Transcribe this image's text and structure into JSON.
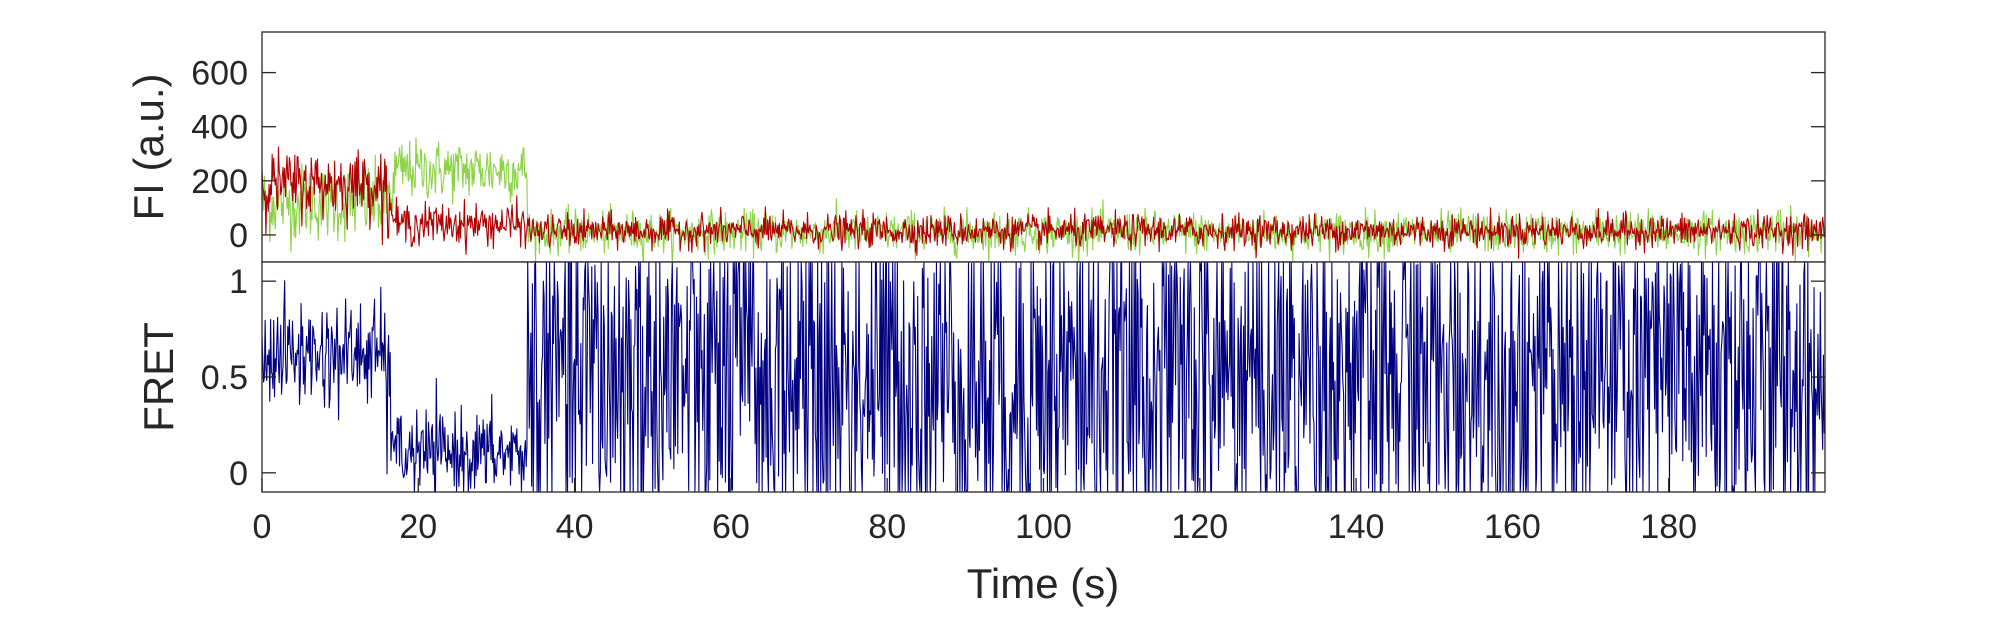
{
  "chart_data": [
    {
      "type": "line",
      "ylabel": "FI (a.u.)",
      "xlim": [
        0,
        200
      ],
      "ylim": [
        -100,
        750
      ],
      "yticks": [
        0,
        200,
        400,
        600
      ],
      "grid": false,
      "legend": "none",
      "series": [
        {
          "color": "#8cd348",
          "segments": [
            {
              "x": [
                0,
                16
              ],
              "mean": 120,
              "noise": 70
            },
            {
              "x": [
                16,
                17
              ],
              "mean": 160,
              "noise": 60
            },
            {
              "x": [
                17,
                34
              ],
              "mean": 240,
              "noise": 55
            },
            {
              "x": [
                34,
                200
              ],
              "mean": 10,
              "noise": 38
            }
          ]
        },
        {
          "color": "#b00000",
          "segments": [
            {
              "x": [
                0,
                16
              ],
              "mean": 190,
              "noise": 60
            },
            {
              "x": [
                16,
                17
              ],
              "mean": 90,
              "noise": 50
            },
            {
              "x": [
                17,
                34
              ],
              "mean": 40,
              "noise": 38
            },
            {
              "x": [
                34,
                200
              ],
              "mean": 15,
              "noise": 30
            }
          ]
        }
      ]
    },
    {
      "type": "line",
      "xlabel": "Time (s)",
      "ylabel": "FRET",
      "xlim": [
        0,
        200
      ],
      "ylim": [
        -0.1,
        1.1
      ],
      "xticks": [
        0,
        20,
        40,
        60,
        80,
        100,
        120,
        140,
        160,
        180
      ],
      "yticks": [
        0,
        0.5,
        1
      ],
      "grid": false,
      "legend": "none",
      "series": [
        {
          "color": "#000080",
          "segments": [
            {
              "x": [
                0,
                16
              ],
              "mean": 0.62,
              "noise": 0.14
            },
            {
              "x": [
                16,
                17
              ],
              "mean": 0.35,
              "noise": 0.2
            },
            {
              "x": [
                17,
                34
              ],
              "mean": 0.1,
              "noise": 0.11
            },
            {
              "x": [
                34,
                200
              ],
              "mean": 0.5,
              "noise": 0.55
            }
          ]
        }
      ]
    }
  ]
}
